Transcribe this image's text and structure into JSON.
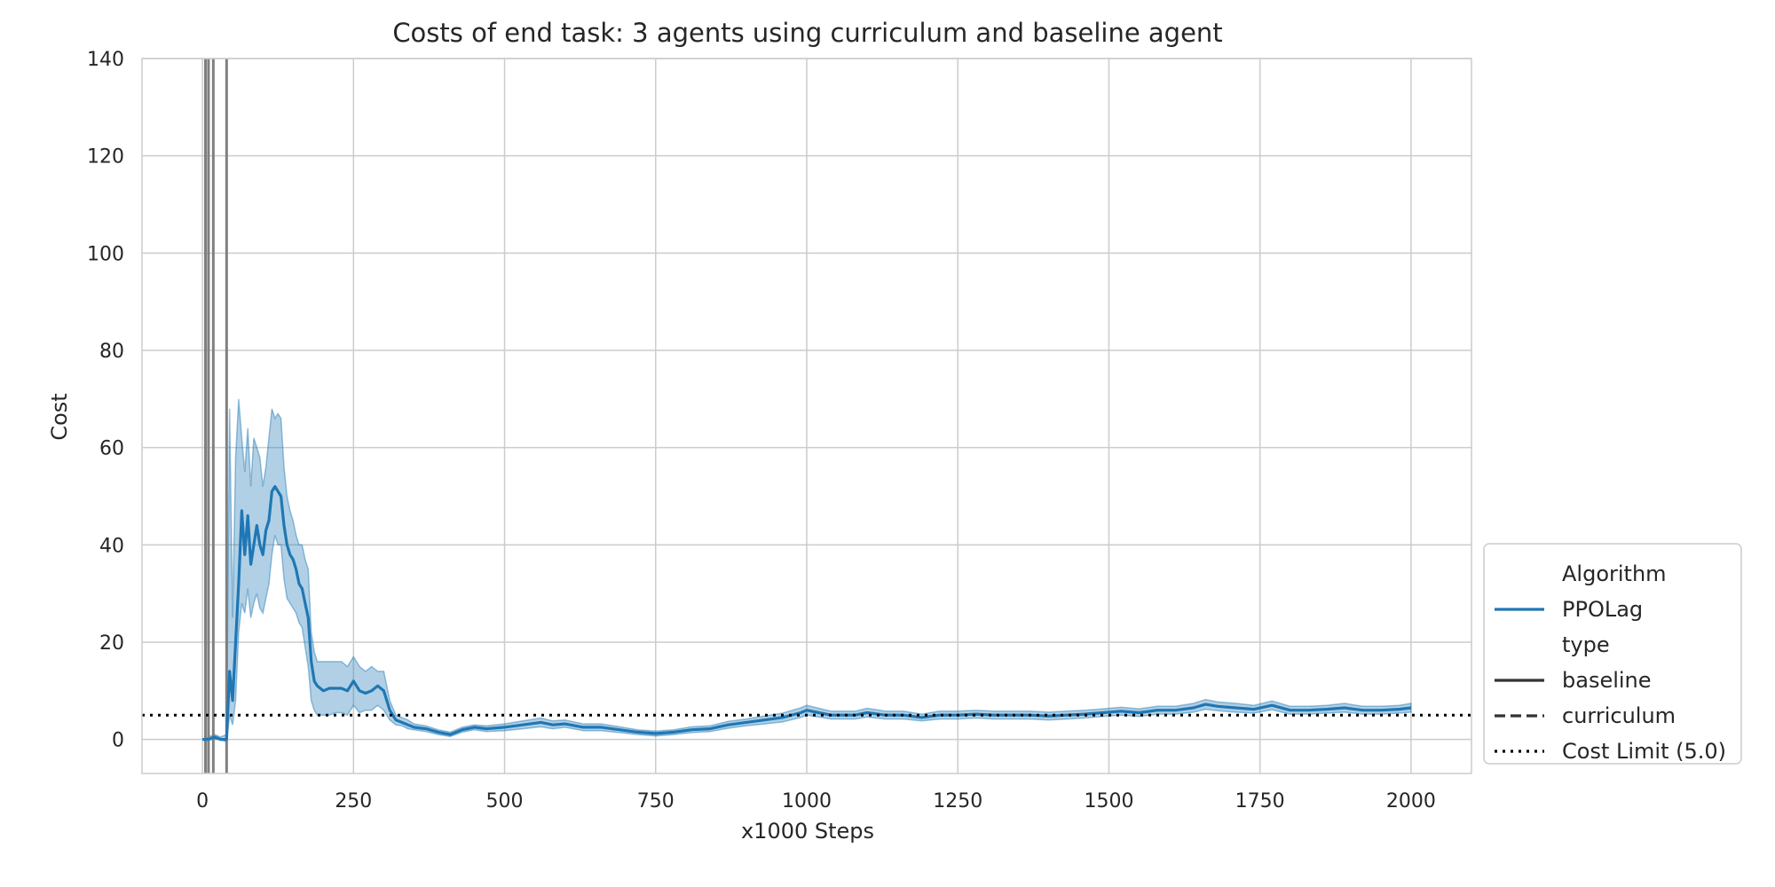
{
  "chart_data": {
    "type": "line",
    "title": "Costs of end task: 3 agents using curriculum and baseline agent",
    "xlabel": "x1000 Steps",
    "ylabel": "Cost",
    "xlim": [
      -100,
      2100
    ],
    "ylim": [
      -7,
      140
    ],
    "xticks": [
      0,
      250,
      500,
      750,
      1000,
      1250,
      1500,
      1750,
      2000
    ],
    "yticks": [
      0,
      20,
      40,
      60,
      80,
      100,
      120,
      140
    ],
    "grid": true,
    "legend_placement": "lower-right outside",
    "legend": {
      "groups": [
        {
          "title": "Algorithm",
          "entries": [
            {
              "label": "PPOLag",
              "style": "solid",
              "color": "#1f77b4"
            }
          ]
        },
        {
          "title": "type",
          "entries": [
            {
              "label": "baseline",
              "style": "solid",
              "color": "#333333"
            },
            {
              "label": "curriculum",
              "style": "dashed",
              "color": "#333333"
            },
            {
              "label": "Cost Limit (5.0)",
              "style": "dotted",
              "color": "#000000"
            }
          ]
        }
      ]
    },
    "cost_limit": 5.0,
    "vertical_markers": [
      5,
      10,
      18,
      40
    ],
    "series": [
      {
        "name": "PPOLag",
        "style": "solid",
        "color": "#1f77b4",
        "band_color": "#1f77b4",
        "x": [
          0,
          10,
          20,
          30,
          40,
          45,
          50,
          55,
          60,
          65,
          70,
          75,
          80,
          85,
          90,
          95,
          100,
          105,
          110,
          115,
          120,
          125,
          130,
          135,
          140,
          145,
          150,
          155,
          160,
          165,
          170,
          175,
          180,
          185,
          190,
          200,
          210,
          220,
          230,
          240,
          250,
          260,
          270,
          280,
          290,
          300,
          310,
          320,
          330,
          340,
          350,
          370,
          390,
          410,
          430,
          450,
          470,
          500,
          530,
          560,
          580,
          600,
          630,
          660,
          690,
          720,
          750,
          780,
          810,
          840,
          870,
          900,
          930,
          960,
          990,
          1000,
          1020,
          1040,
          1060,
          1080,
          1100,
          1130,
          1160,
          1190,
          1220,
          1250,
          1280,
          1310,
          1340,
          1370,
          1400,
          1430,
          1460,
          1490,
          1520,
          1550,
          1580,
          1610,
          1640,
          1660,
          1680,
          1710,
          1740,
          1770,
          1800,
          1830,
          1860,
          1890,
          1920,
          1950,
          1980,
          2000
        ],
        "y": [
          0,
          0,
          0.5,
          0,
          0,
          14,
          8,
          20,
          32,
          47,
          38,
          46,
          36,
          40,
          44,
          40,
          38,
          43,
          45,
          51,
          52,
          51,
          50,
          44,
          40,
          38,
          37,
          35,
          32,
          31,
          28,
          25,
          16,
          12,
          11,
          10,
          10.5,
          10.5,
          10.5,
          10,
          12,
          10,
          9.5,
          10,
          11,
          10,
          6,
          4,
          3.5,
          3,
          2.5,
          2.2,
          1.5,
          1,
          2,
          2.5,
          2.2,
          2.5,
          3,
          3.5,
          3,
          3.2,
          2.5,
          2.5,
          2,
          1.5,
          1.2,
          1.5,
          2,
          2.2,
          3,
          3.5,
          4,
          4.5,
          5.5,
          6,
          5.5,
          5,
          5,
          5,
          5.5,
          5,
          5,
          4.5,
          5,
          5,
          5.2,
          5,
          5,
          5,
          4.8,
          5,
          5.2,
          5.5,
          5.8,
          5.5,
          6,
          6,
          6.5,
          7.2,
          6.8,
          6.5,
          6.2,
          7,
          6,
          6,
          6.2,
          6.5,
          6,
          6,
          6.2,
          6.5
        ],
        "lower": [
          0,
          0,
          0,
          0,
          -0.5,
          5,
          3,
          8,
          22,
          28,
          26,
          31,
          25,
          28,
          30,
          27,
          26,
          29,
          32,
          38,
          42,
          40,
          40,
          33,
          29,
          28,
          27,
          26,
          24,
          23,
          19,
          15,
          8,
          6,
          5,
          5,
          5,
          5.5,
          5.5,
          5,
          7,
          5.5,
          6,
          6,
          7,
          6,
          4,
          3,
          2.8,
          2.2,
          2,
          1.6,
          1,
          0.6,
          1.5,
          2,
          1.6,
          1.8,
          2.2,
          2.6,
          2.2,
          2.5,
          1.8,
          1.8,
          1.4,
          1,
          0.7,
          1,
          1.4,
          1.6,
          2.3,
          2.8,
          3.2,
          3.6,
          4.5,
          5,
          4.6,
          4.2,
          4.2,
          4.2,
          4.6,
          4.2,
          4.2,
          3.8,
          4.2,
          4.2,
          4.4,
          4.2,
          4.2,
          4.2,
          4,
          4.2,
          4.4,
          4.7,
          5,
          4.7,
          5.2,
          5.2,
          5.6,
          6.2,
          5.9,
          5.6,
          5.4,
          6.1,
          5.2,
          5.2,
          5.4,
          5.6,
          5.2,
          5.2,
          5.4,
          5.6
        ],
        "upper": [
          0,
          0.5,
          1,
          0.5,
          1,
          68,
          25,
          58,
          70,
          62,
          55,
          64,
          52,
          62,
          60,
          58,
          52,
          56,
          62,
          68,
          66,
          67,
          66,
          56,
          50,
          47,
          45,
          42,
          40,
          40,
          37,
          35,
          22,
          18,
          16,
          16,
          16,
          16,
          16,
          15,
          17,
          15,
          14,
          15,
          14,
          14,
          8,
          5,
          4.5,
          4,
          3.2,
          2.8,
          2,
          1.5,
          2.5,
          3,
          2.8,
          3.2,
          3.8,
          4.4,
          3.8,
          4,
          3.2,
          3.2,
          2.6,
          2,
          1.7,
          2,
          2.6,
          2.8,
          3.7,
          4.2,
          4.8,
          5.4,
          6.5,
          7,
          6.4,
          5.8,
          5.8,
          5.8,
          6.4,
          5.8,
          5.8,
          5.2,
          5.8,
          5.8,
          6,
          5.8,
          5.8,
          5.8,
          5.6,
          5.8,
          6,
          6.3,
          6.6,
          6.3,
          6.8,
          6.8,
          7.4,
          8.2,
          7.7,
          7.4,
          7,
          7.9,
          6.8,
          6.8,
          7,
          7.4,
          6.8,
          6.8,
          7,
          7.4
        ]
      }
    ]
  }
}
